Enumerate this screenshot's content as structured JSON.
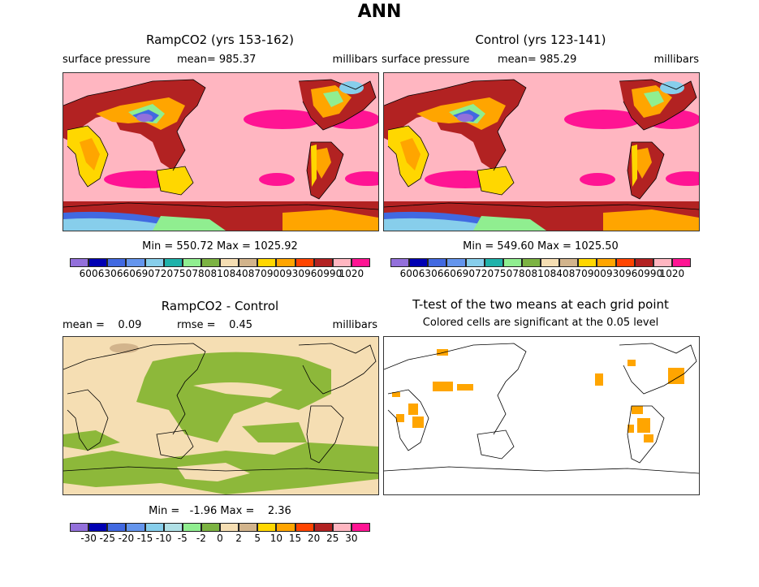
{
  "title": "ANN",
  "panels": {
    "top_left": {
      "title": "RampCO2 (yrs 153-162)",
      "field": "surface pressure",
      "mean_text": "mean= 985.37",
      "units": "millibars",
      "minmax": "Min = 550.72 Max = 1025.92"
    },
    "top_right": {
      "title": "Control (yrs 123-141)",
      "field": "surface pressure",
      "mean_text": "mean= 985.29",
      "units": "millibars",
      "minmax": "Min = 549.60 Max = 1025.50"
    },
    "bottom_left": {
      "title": "RampCO2 - Control",
      "mean_text": "mean =    0.09",
      "rmse_text": "rmse =    0.45",
      "units": "millibars",
      "minmax": "Min =   -1.96 Max =    2.36"
    },
    "bottom_right": {
      "title": "T-test of the two means at each grid point",
      "subtitle": "Colored cells are significant at the 0.05 level"
    }
  },
  "colorbars": {
    "pressure": {
      "colors": [
        "#9370db",
        "#0000b3",
        "#4169e1",
        "#6495ed",
        "#87ceeb",
        "#20b2aa",
        "#90ee90",
        "#7cb342",
        "#f5deb3",
        "#d2b48c",
        "#ffd700",
        "#ffa500",
        "#ff4500",
        "#b22222",
        "#ffb6c1",
        "#ff1493"
      ],
      "labels": [
        "600",
        "630",
        "660",
        "690",
        "720",
        "750",
        "780",
        "810",
        "840",
        "870",
        "900",
        "930",
        "960",
        "990",
        "1020"
      ]
    },
    "difference": {
      "colors": [
        "#9370db",
        "#0000b3",
        "#4169e1",
        "#6495ed",
        "#87ceeb",
        "#b0e0e6",
        "#90ee90",
        "#7cb342",
        "#f5deb3",
        "#d2b48c",
        "#ffd700",
        "#ffa500",
        "#ff4500",
        "#b22222",
        "#ffb6c1",
        "#ff1493"
      ],
      "labels": [
        "-30",
        "-25",
        "-20",
        "-15",
        "-10",
        "-5",
        "-2",
        "0",
        "2",
        "5",
        "10",
        "15",
        "20",
        "25",
        "30"
      ]
    }
  },
  "map_colors": {
    "ocean_pressure": "#ffb6c1",
    "high_pressure": "#ff1493",
    "land_high": "#ffa500",
    "land_mid": "#ffd700",
    "land_low": "#b22222",
    "antarctic": "#b22222",
    "diff_bg": "#f5deb3",
    "diff_pos": "#8db83a",
    "sig": "#ffa500"
  }
}
